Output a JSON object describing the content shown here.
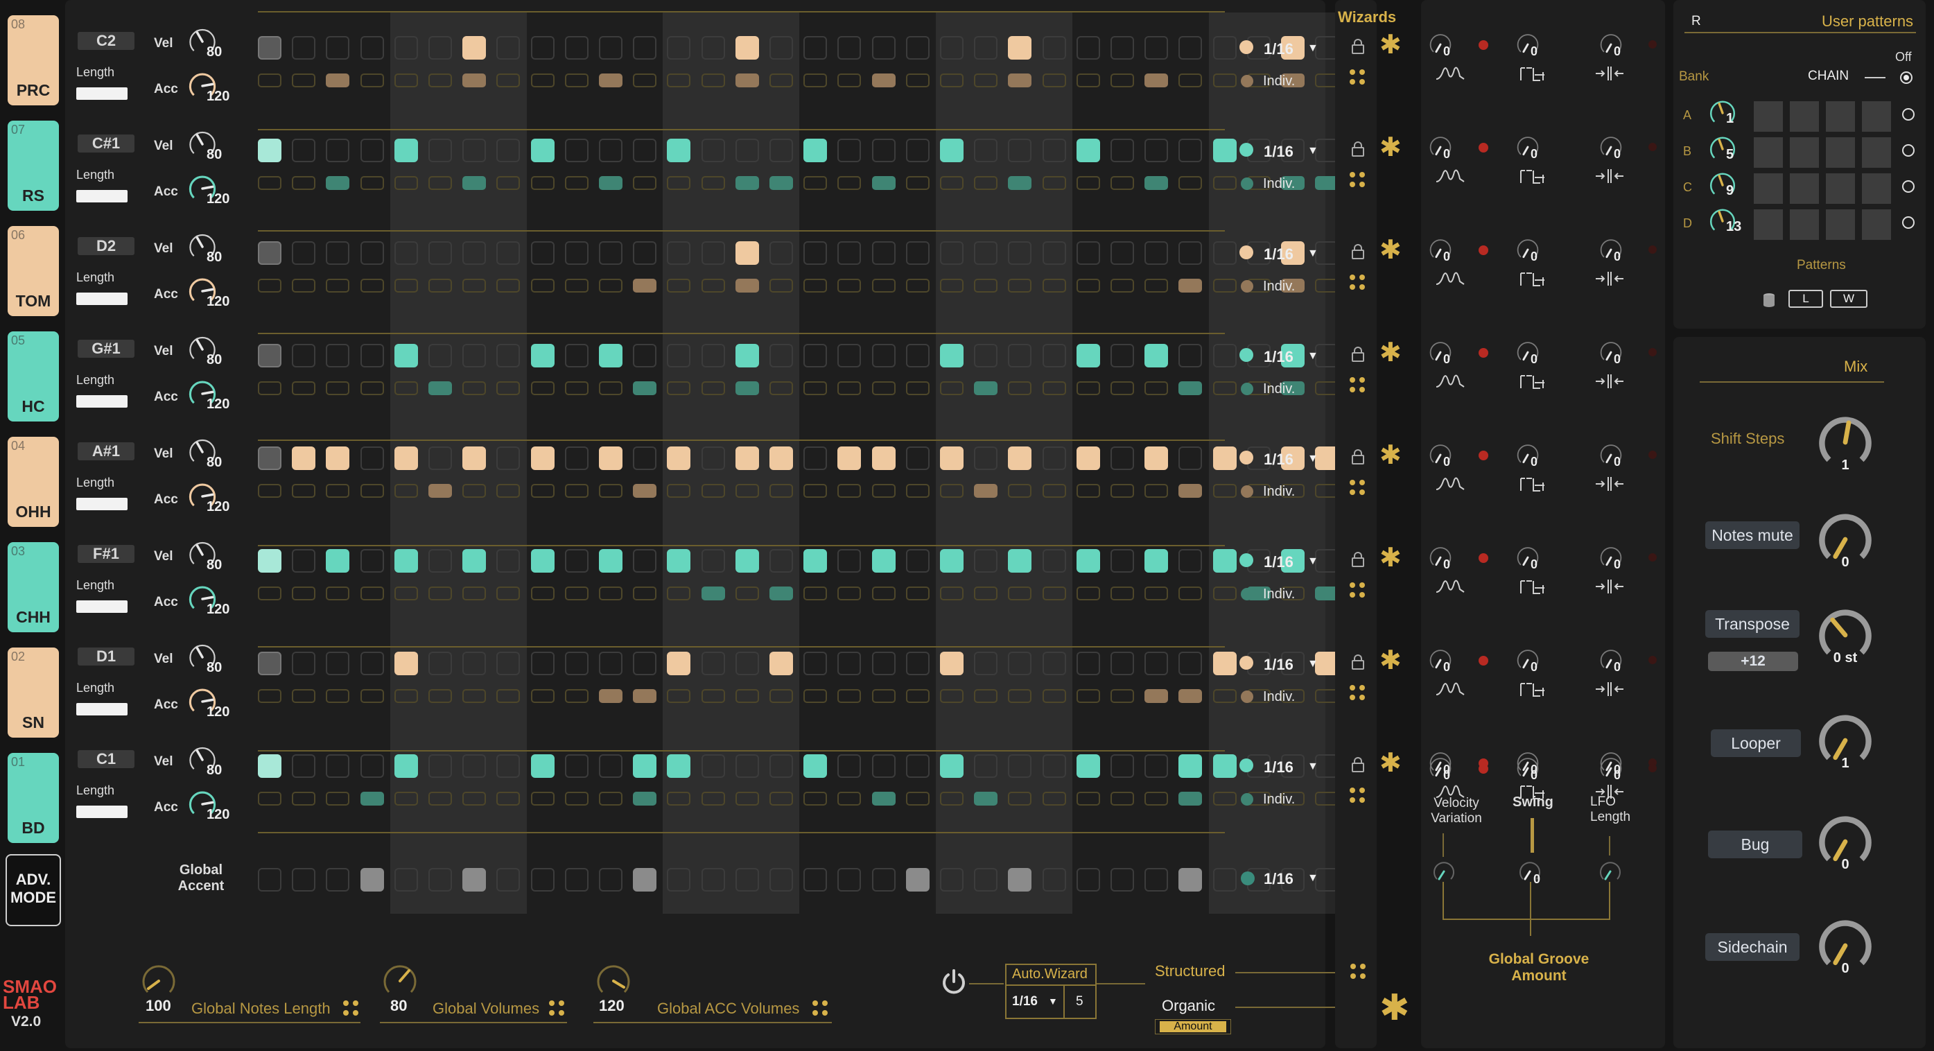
{
  "colors": {
    "peach": "#efc9a0",
    "teal": "#66d6be",
    "gold": "#d8b24a",
    "panel": "#1e1e1e"
  },
  "tracks": [
    {
      "num": "08",
      "name": "PRC",
      "note": "C2",
      "pad": "peach",
      "vel": "80",
      "acc": "120",
      "rate": "1/16",
      "mode": "Indiv.",
      "steps": [
        2,
        0,
        0,
        0,
        0,
        0,
        1,
        0,
        0,
        0,
        0,
        0,
        0,
        0,
        1,
        0,
        0,
        0,
        0,
        0,
        0,
        0,
        1,
        0,
        0,
        0,
        0,
        0,
        0,
        0,
        1,
        0
      ],
      "accents": [
        0,
        0,
        1,
        0,
        0,
        0,
        1,
        0,
        0,
        0,
        1,
        0,
        0,
        0,
        1,
        0,
        0,
        0,
        1,
        0,
        0,
        0,
        1,
        0,
        0,
        0,
        1,
        0,
        0,
        0,
        1,
        0
      ]
    },
    {
      "num": "07",
      "name": "RS",
      "note": "C#1",
      "pad": "teal",
      "vel": "80",
      "acc": "120",
      "rate": "1/16",
      "mode": "Indiv.",
      "steps": [
        2,
        0,
        0,
        0,
        1,
        0,
        0,
        0,
        1,
        0,
        0,
        0,
        1,
        0,
        0,
        0,
        1,
        0,
        0,
        0,
        1,
        0,
        0,
        0,
        1,
        0,
        0,
        0,
        1,
        0,
        0,
        0
      ],
      "accents": [
        0,
        0,
        1,
        0,
        0,
        0,
        1,
        0,
        0,
        0,
        1,
        0,
        0,
        0,
        1,
        1,
        0,
        0,
        1,
        0,
        0,
        0,
        1,
        0,
        0,
        0,
        1,
        0,
        0,
        0,
        1,
        1
      ]
    },
    {
      "num": "06",
      "name": "TOM",
      "note": "D2",
      "pad": "peach",
      "vel": "80",
      "acc": "120",
      "rate": "1/16",
      "mode": "Indiv.",
      "steps": [
        2,
        0,
        0,
        0,
        0,
        0,
        0,
        0,
        0,
        0,
        0,
        0,
        0,
        0,
        1,
        0,
        0,
        0,
        0,
        0,
        0,
        0,
        0,
        0,
        0,
        0,
        0,
        0,
        0,
        0,
        1,
        0
      ],
      "accents": [
        0,
        0,
        0,
        0,
        0,
        0,
        0,
        0,
        0,
        0,
        0,
        1,
        0,
        0,
        1,
        0,
        0,
        0,
        0,
        0,
        0,
        0,
        0,
        0,
        0,
        0,
        0,
        1,
        0,
        0,
        1,
        0
      ]
    },
    {
      "num": "05",
      "name": "HC",
      "note": "G#1",
      "pad": "teal",
      "vel": "80",
      "acc": "120",
      "rate": "1/16",
      "mode": "Indiv.",
      "steps": [
        2,
        0,
        0,
        0,
        1,
        0,
        0,
        0,
        1,
        0,
        1,
        0,
        0,
        0,
        1,
        0,
        0,
        0,
        0,
        0,
        1,
        0,
        0,
        0,
        1,
        0,
        1,
        0,
        0,
        0,
        1,
        0
      ],
      "accents": [
        0,
        0,
        0,
        0,
        0,
        1,
        0,
        0,
        0,
        0,
        0,
        1,
        0,
        0,
        1,
        0,
        0,
        0,
        0,
        0,
        0,
        1,
        0,
        0,
        0,
        0,
        0,
        1,
        0,
        0,
        1,
        0
      ]
    },
    {
      "num": "04",
      "name": "OHH",
      "note": "A#1",
      "pad": "peach",
      "vel": "80",
      "acc": "120",
      "rate": "1/16",
      "mode": "Indiv.",
      "steps": [
        2,
        1,
        1,
        0,
        1,
        0,
        1,
        0,
        1,
        0,
        1,
        0,
        1,
        0,
        1,
        1,
        0,
        1,
        1,
        0,
        1,
        0,
        1,
        0,
        1,
        0,
        1,
        0,
        1,
        0,
        1,
        1
      ],
      "accents": [
        0,
        0,
        0,
        0,
        0,
        1,
        0,
        0,
        0,
        0,
        0,
        1,
        0,
        0,
        0,
        0,
        0,
        0,
        0,
        0,
        0,
        1,
        0,
        0,
        0,
        0,
        0,
        1,
        0,
        0,
        0,
        0
      ]
    },
    {
      "num": "03",
      "name": "CHH",
      "note": "F#1",
      "pad": "teal",
      "vel": "80",
      "acc": "120",
      "rate": "1/16",
      "mode": "Indiv.",
      "steps": [
        2,
        0,
        1,
        0,
        1,
        0,
        1,
        0,
        1,
        0,
        1,
        0,
        1,
        0,
        1,
        0,
        1,
        0,
        1,
        0,
        1,
        0,
        1,
        0,
        1,
        0,
        1,
        0,
        1,
        0,
        1,
        0
      ],
      "accents": [
        0,
        0,
        0,
        0,
        0,
        0,
        0,
        0,
        0,
        0,
        0,
        0,
        0,
        1,
        0,
        1,
        0,
        0,
        0,
        0,
        0,
        0,
        0,
        0,
        0,
        0,
        0,
        0,
        0,
        1,
        0,
        1
      ]
    },
    {
      "num": "02",
      "name": "SN",
      "note": "D1",
      "pad": "peach",
      "vel": "80",
      "acc": "120",
      "rate": "1/16",
      "mode": "Indiv.",
      "steps": [
        2,
        0,
        0,
        0,
        1,
        0,
        0,
        0,
        0,
        0,
        0,
        0,
        1,
        0,
        0,
        1,
        0,
        0,
        0,
        0,
        1,
        0,
        0,
        0,
        0,
        0,
        0,
        0,
        1,
        0,
        0,
        1
      ],
      "accents": [
        0,
        0,
        0,
        0,
        0,
        0,
        0,
        0,
        0,
        0,
        1,
        1,
        0,
        0,
        0,
        0,
        0,
        0,
        0,
        0,
        0,
        0,
        0,
        0,
        0,
        0,
        1,
        1,
        0,
        0,
        0,
        0
      ]
    },
    {
      "num": "01",
      "name": "BD",
      "note": "C1",
      "pad": "teal",
      "vel": "80",
      "acc": "120",
      "rate": "1/16",
      "mode": "Indiv.",
      "steps": [
        2,
        0,
        0,
        0,
        1,
        0,
        0,
        0,
        1,
        0,
        0,
        1,
        1,
        0,
        0,
        0,
        1,
        0,
        0,
        0,
        1,
        0,
        0,
        0,
        1,
        0,
        0,
        1,
        1,
        0,
        0,
        0
      ],
      "accents": [
        0,
        0,
        0,
        1,
        0,
        0,
        0,
        0,
        0,
        0,
        0,
        1,
        0,
        0,
        0,
        0,
        0,
        0,
        1,
        0,
        0,
        1,
        0,
        0,
        0,
        0,
        0,
        1,
        0,
        0,
        0,
        0
      ]
    }
  ],
  "labels": {
    "vel": "Vel",
    "acc": "Acc",
    "length": "Length",
    "knob0": "0"
  },
  "global_accent": {
    "label_line1": "Global",
    "label_line2": "Accent",
    "rate": "1/16",
    "steps": [
      0,
      0,
      0,
      1,
      0,
      0,
      1,
      0,
      0,
      0,
      0,
      1,
      0,
      0,
      0,
      0,
      0,
      0,
      0,
      1,
      0,
      0,
      1,
      0,
      0,
      0,
      0,
      1,
      0,
      0,
      0,
      0
    ]
  },
  "adv_mode": {
    "line1": "ADV.",
    "line2": "MODE"
  },
  "logo": {
    "line1": "SMAO",
    "line2": "LAB",
    "version": "V2.0"
  },
  "bottom": {
    "notes_length": {
      "value": "100",
      "label": "Global Notes Length"
    },
    "volumes": {
      "value": "80",
      "label": "Global Volumes"
    },
    "acc_volumes": {
      "value": "120",
      "label": "Global ACC Volumes"
    },
    "autowizard": {
      "title": "Auto.Wizard",
      "rate": "1/16",
      "count": "5"
    },
    "structured": "Structured",
    "organic": "Organic",
    "amount": "Amount"
  },
  "wizards": {
    "title": "Wizards"
  },
  "groove": {
    "velocity_variation_1": "Velocity",
    "velocity_variation_2": "Variation",
    "swing": "Swing",
    "lfo_1": "LFO",
    "lfo_2": "Length",
    "global_1": "Global Groove",
    "global_2": "Amount"
  },
  "user_patterns": {
    "r": "R",
    "title": "User patterns",
    "off": "Off",
    "bank": "Bank",
    "chain": "CHAIN",
    "banks": [
      {
        "letter": "A",
        "val": "1"
      },
      {
        "letter": "B",
        "val": "5"
      },
      {
        "letter": "C",
        "val": "9"
      },
      {
        "letter": "D",
        "val": "13"
      }
    ],
    "patterns": "Patterns",
    "load": "L",
    "write": "W"
  },
  "mix": {
    "title": "Mix",
    "shift_steps": {
      "label": "Shift Steps",
      "value": "1"
    },
    "notes_mute": {
      "label": "Notes mute",
      "value": "0"
    },
    "transpose": {
      "label": "Transpose",
      "offset": "+12",
      "value": "0 st"
    },
    "looper": {
      "label": "Looper",
      "value": "1"
    },
    "bug": {
      "label": "Bug",
      "value": "0"
    },
    "sidechain": {
      "label": "Sidechain",
      "value": "0"
    }
  }
}
